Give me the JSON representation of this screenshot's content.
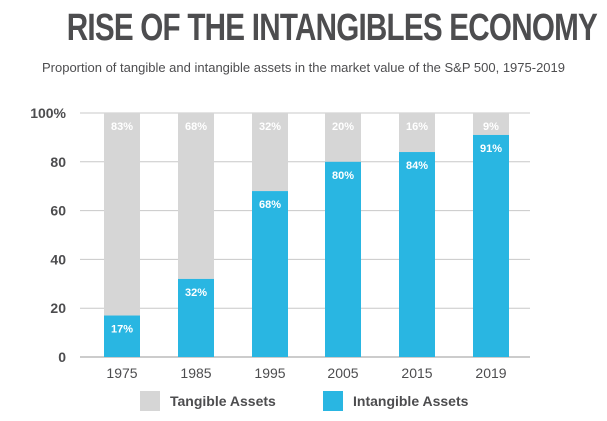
{
  "chart_data": {
    "type": "bar",
    "stacked": true,
    "title": "RISE OF THE INTANGIBLES ECONOMY",
    "subtitle": "Proportion of tangible and intangible assets in the market value of the S&P 500, 1975-2019",
    "categories": [
      "1975",
      "1985",
      "1995",
      "2005",
      "2015",
      "2019"
    ],
    "series": [
      {
        "name": "Intangible Assets",
        "values": [
          17,
          32,
          68,
          80,
          84,
          91
        ],
        "labels": [
          "17%",
          "32%",
          "68%",
          "80%",
          "84%",
          "91%"
        ],
        "color": "#29b6e2"
      },
      {
        "name": "Tangible Assets",
        "values": [
          83,
          68,
          32,
          20,
          16,
          9
        ],
        "labels": [
          "83%",
          "68%",
          "32%",
          "20%",
          "16%",
          "9%"
        ],
        "color": "#d6d6d6"
      }
    ],
    "yticks": [
      "0",
      "20",
      "40",
      "60",
      "80",
      "100%"
    ],
    "ylim": [
      0,
      100
    ],
    "grid": true,
    "legend_position": "bottom"
  },
  "legend": {
    "tangible_label": "Tangible Assets",
    "intangible_label": "Intangible Assets",
    "tangible_color": "#d6d6d6",
    "intangible_color": "#29b6e2"
  }
}
